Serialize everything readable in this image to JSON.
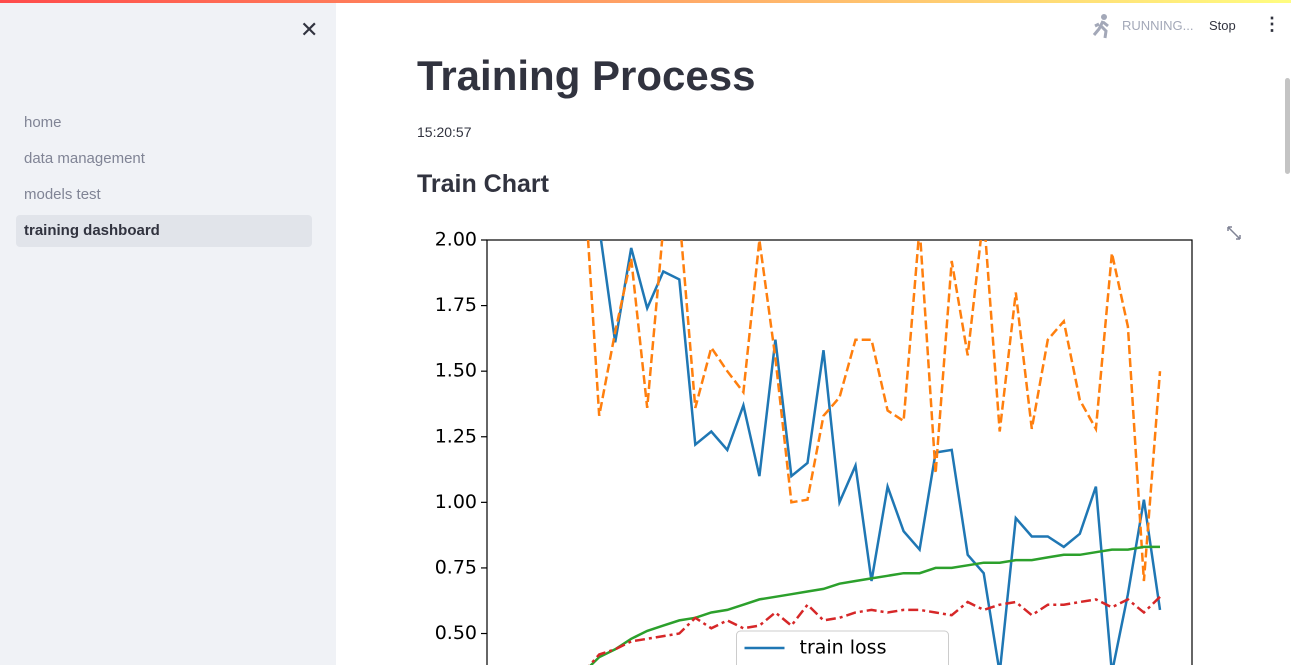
{
  "sidebar": {
    "nav": [
      "home",
      "data management",
      "models test",
      "training dashboard"
    ],
    "active": 3
  },
  "toolbar": {
    "status": "RUNNING...",
    "stop": "Stop"
  },
  "main": {
    "title": "Training Process",
    "time": "15:20:57",
    "subheader": "Train Chart"
  },
  "chart_data": {
    "type": "line",
    "x": [
      0,
      1,
      2,
      3,
      4,
      5,
      6,
      7,
      8,
      9,
      10,
      11,
      12,
      13,
      14,
      15,
      16,
      17,
      18,
      19,
      20,
      21,
      22,
      23,
      24,
      25,
      26,
      27,
      28,
      29,
      30,
      31,
      32,
      33,
      34,
      35,
      36
    ],
    "xlim": [
      -6,
      38
    ],
    "ylim": [
      0.38,
      2
    ],
    "yticks": [
      {
        "value": 0.5,
        "label": "0.50"
      },
      {
        "value": 0.75,
        "label": "0.75"
      },
      {
        "value": 1,
        "label": "1.00"
      },
      {
        "value": 1.25,
        "label": "1.25"
      },
      {
        "value": 1.5,
        "label": "1.50"
      },
      {
        "value": 1.75,
        "label": "1.75"
      },
      {
        "value": 2,
        "label": "2.00"
      }
    ],
    "legend": "lower center",
    "series": [
      {
        "name": "train loss",
        "color": "#1f77b4",
        "dash": "solid",
        "values": [
          2.3,
          2.05,
          1.61,
          1.97,
          1.74,
          1.88,
          1.85,
          1.22,
          1.27,
          1.2,
          1.37,
          1.1,
          1.62,
          1.1,
          1.15,
          1.58,
          1.0,
          1.14,
          0.7,
          1.06,
          0.89,
          0.82,
          1.19,
          1.2,
          0.8,
          0.73,
          0.35,
          0.94,
          0.87,
          0.87,
          0.83,
          0.88,
          1.06,
          0.35,
          0.65,
          1.01,
          0.59
        ]
      },
      {
        "color": "#ff7f0e",
        "dash": "dashed",
        "values": [
          2.3,
          1.33,
          1.65,
          1.93,
          1.36,
          2.05,
          2.1,
          1.36,
          1.59,
          1.5,
          1.42,
          2.0,
          1.55,
          1.0,
          1.01,
          1.33,
          1.4,
          1.62,
          1.62,
          1.35,
          1.31,
          2.05,
          1.11,
          1.92,
          1.56,
          2.1,
          1.27,
          1.8,
          1.28,
          1.62,
          1.69,
          1.39,
          1.28,
          1.95,
          1.67,
          0.7,
          1.5
        ]
      },
      {
        "color": "#2ca02c",
        "dash": "solid",
        "values": [
          0.35,
          0.41,
          0.44,
          0.48,
          0.51,
          0.53,
          0.55,
          0.56,
          0.58,
          0.59,
          0.61,
          0.63,
          0.64,
          0.65,
          0.66,
          0.67,
          0.69,
          0.7,
          0.71,
          0.72,
          0.73,
          0.73,
          0.75,
          0.75,
          0.76,
          0.77,
          0.77,
          0.78,
          0.78,
          0.79,
          0.8,
          0.8,
          0.81,
          0.82,
          0.82,
          0.83,
          0.83
        ]
      },
      {
        "color": "#d62728",
        "dash": "dashdot",
        "values": [
          0.35,
          0.42,
          0.44,
          0.47,
          0.48,
          0.49,
          0.5,
          0.56,
          0.52,
          0.55,
          0.52,
          0.53,
          0.58,
          0.53,
          0.61,
          0.55,
          0.56,
          0.58,
          0.59,
          0.58,
          0.59,
          0.59,
          0.58,
          0.57,
          0.62,
          0.59,
          0.61,
          0.62,
          0.57,
          0.61,
          0.61,
          0.62,
          0.63,
          0.6,
          0.63,
          0.58,
          0.64
        ]
      }
    ]
  }
}
